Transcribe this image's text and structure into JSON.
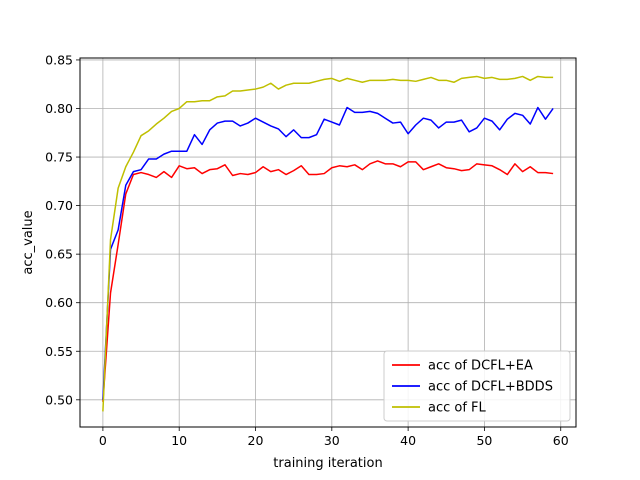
{
  "chart_data": {
    "type": "line",
    "title": "",
    "xlabel": "training iteration",
    "ylabel": "acc_value",
    "xlim": [
      -3,
      62
    ],
    "ylim": [
      0.472,
      0.852
    ],
    "xticks": [
      0,
      10,
      20,
      30,
      40,
      50,
      60
    ],
    "yticks": [
      0.5,
      0.55,
      0.6,
      0.65,
      0.7,
      0.75,
      0.8,
      0.85
    ],
    "ytick_labels": [
      "0.50",
      "0.55",
      "0.60",
      "0.65",
      "0.70",
      "0.75",
      "0.80",
      "0.85"
    ],
    "grid": true,
    "legend_position": "lower-right",
    "series": [
      {
        "name": "acc of DCFL+EA",
        "color": "#ff0000",
        "values": [
          0.498,
          0.61,
          0.66,
          0.712,
          0.732,
          0.734,
          0.732,
          0.729,
          0.735,
          0.729,
          0.741,
          0.738,
          0.739,
          0.733,
          0.737,
          0.738,
          0.742,
          0.731,
          0.733,
          0.732,
          0.734,
          0.74,
          0.735,
          0.737,
          0.732,
          0.736,
          0.741,
          0.732,
          0.732,
          0.733,
          0.739,
          0.741,
          0.74,
          0.742,
          0.737,
          0.743,
          0.746,
          0.743,
          0.743,
          0.74,
          0.745,
          0.745,
          0.737,
          0.74,
          0.743,
          0.739,
          0.738,
          0.736,
          0.737,
          0.743,
          0.742,
          0.741,
          0.737,
          0.732,
          0.743,
          0.735,
          0.74,
          0.734,
          0.734,
          0.733
        ]
      },
      {
        "name": "acc of DCFL+BDDS",
        "color": "#0000ff",
        "values": [
          0.5,
          0.655,
          0.675,
          0.721,
          0.735,
          0.737,
          0.748,
          0.748,
          0.753,
          0.756,
          0.756,
          0.756,
          0.773,
          0.763,
          0.778,
          0.785,
          0.787,
          0.787,
          0.782,
          0.785,
          0.79,
          0.786,
          0.782,
          0.779,
          0.771,
          0.778,
          0.77,
          0.77,
          0.773,
          0.789,
          0.786,
          0.783,
          0.801,
          0.796,
          0.796,
          0.797,
          0.795,
          0.79,
          0.785,
          0.786,
          0.774,
          0.783,
          0.79,
          0.788,
          0.78,
          0.786,
          0.786,
          0.788,
          0.776,
          0.78,
          0.79,
          0.787,
          0.778,
          0.789,
          0.795,
          0.793,
          0.784,
          0.801,
          0.789,
          0.8
        ]
      },
      {
        "name": "acc of FL",
        "color": "#bfbf00",
        "values": [
          0.488,
          0.665,
          0.718,
          0.74,
          0.755,
          0.772,
          0.777,
          0.784,
          0.79,
          0.797,
          0.8,
          0.807,
          0.807,
          0.808,
          0.808,
          0.812,
          0.813,
          0.818,
          0.818,
          0.819,
          0.82,
          0.822,
          0.826,
          0.82,
          0.824,
          0.826,
          0.826,
          0.826,
          0.828,
          0.83,
          0.831,
          0.828,
          0.831,
          0.829,
          0.827,
          0.829,
          0.829,
          0.829,
          0.83,
          0.829,
          0.829,
          0.828,
          0.83,
          0.832,
          0.829,
          0.829,
          0.827,
          0.831,
          0.832,
          0.833,
          0.831,
          0.832,
          0.83,
          0.83,
          0.831,
          0.833,
          0.829,
          0.833,
          0.832,
          0.832
        ]
      }
    ]
  }
}
